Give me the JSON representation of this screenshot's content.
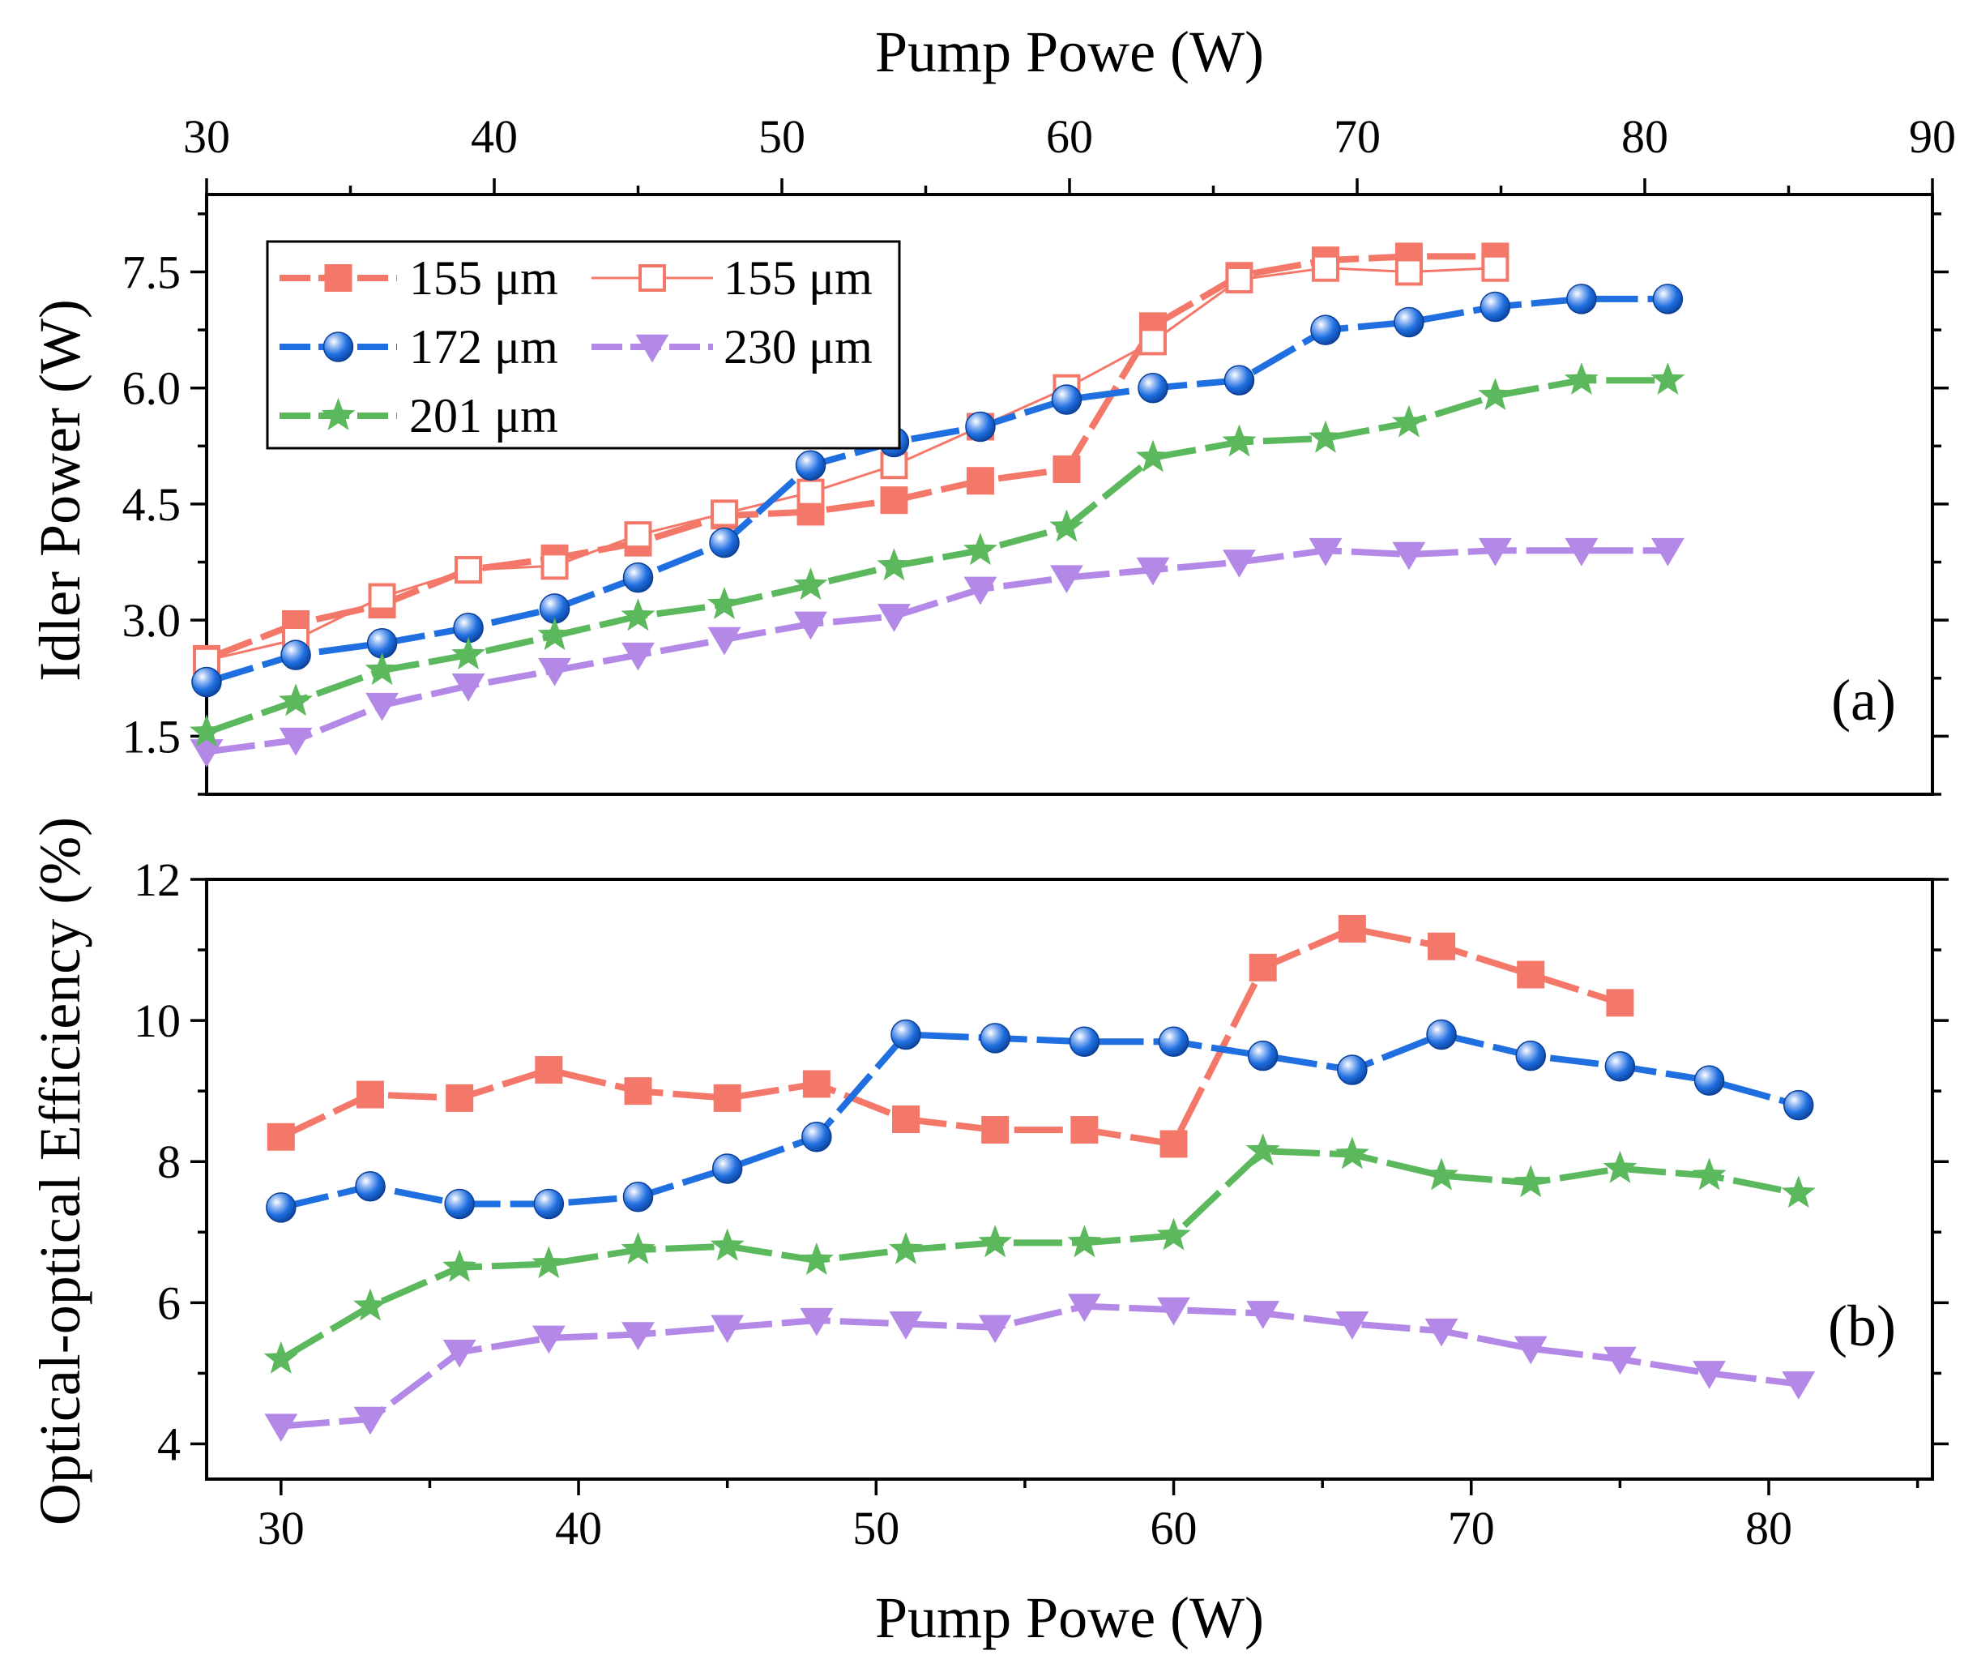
{
  "chart_data": [
    {
      "id": "a",
      "type": "line",
      "panel_label": "(a)",
      "title": "",
      "xlabel": "Pump Powe (W)",
      "ylabel": "Idler Power (W)",
      "xlim": [
        30,
        90
      ],
      "xticks": [
        30,
        40,
        50,
        60,
        70,
        80,
        90
      ],
      "ylim": [
        0.75,
        8.5
      ],
      "yticks": [
        1.5,
        3.0,
        4.5,
        6.0,
        7.5
      ],
      "ytick_labels": [
        "1.5",
        "3.0",
        "4.5",
        "6.0",
        "7.5"
      ],
      "legend": "top-left",
      "series": [
        {
          "name": "155 μm",
          "marker": "square",
          "color": "#F4786A",
          "dashed": true,
          "x": [
            30,
            33.1,
            36.1,
            39.1,
            42.1,
            45.0,
            48.0,
            51.0,
            53.9,
            56.9,
            59.9,
            62.9,
            65.9,
            68.9,
            71.8,
            74.8
          ],
          "y": [
            2.5,
            2.95,
            3.2,
            3.65,
            3.8,
            4.0,
            4.35,
            4.4,
            4.55,
            4.8,
            4.95,
            6.8,
            7.45,
            7.65,
            7.7,
            7.7
          ]
        },
        {
          "name": "155 μm",
          "marker": "square-open",
          "color": "#F4786A",
          "dashed": false,
          "x": [
            30,
            33.1,
            36.1,
            39.1,
            42.1,
            45.0,
            48.0,
            51.0,
            53.9,
            56.9,
            59.9,
            62.9,
            65.9,
            68.9,
            71.8,
            74.8
          ],
          "y": [
            2.48,
            2.75,
            3.3,
            3.65,
            3.7,
            4.1,
            4.38,
            4.65,
            5.0,
            5.5,
            6.0,
            6.6,
            7.4,
            7.55,
            7.5,
            7.55
          ]
        },
        {
          "name": "172 μm",
          "marker": "sphere",
          "color": "#1F6FE0",
          "dashed": true,
          "x": [
            30,
            33.1,
            36.1,
            39.1,
            42.1,
            45.0,
            48.0,
            51.0,
            53.9,
            56.9,
            59.9,
            62.9,
            65.9,
            68.9,
            71.8,
            74.8,
            77.8,
            80.8
          ],
          "y": [
            2.2,
            2.55,
            2.7,
            2.9,
            3.15,
            3.55,
            4.0,
            5.0,
            5.3,
            5.5,
            5.85,
            6.0,
            6.1,
            6.75,
            6.85,
            7.05,
            7.15,
            7.15
          ]
        },
        {
          "name": "230 μm",
          "marker": "triangle-down",
          "color": "#B388E6",
          "dashed": true,
          "x": [
            30,
            33.1,
            36.1,
            39.1,
            42.1,
            45.0,
            48.0,
            51.0,
            53.9,
            56.9,
            59.9,
            62.9,
            65.9,
            68.9,
            71.8,
            74.8,
            77.8,
            80.8
          ],
          "y": [
            1.3,
            1.45,
            1.9,
            2.15,
            2.35,
            2.55,
            2.75,
            2.95,
            3.05,
            3.4,
            3.55,
            3.65,
            3.75,
            3.9,
            3.85,
            3.9,
            3.9,
            3.9
          ]
        },
        {
          "name": "201 μm",
          "marker": "star",
          "color": "#5CB85C",
          "dashed": true,
          "x": [
            30,
            33.1,
            36.1,
            39.1,
            42.1,
            45.0,
            48.0,
            51.0,
            53.9,
            56.9,
            59.9,
            62.9,
            65.9,
            68.9,
            71.8,
            74.8,
            77.8,
            80.8
          ],
          "y": [
            1.55,
            1.95,
            2.35,
            2.55,
            2.8,
            3.05,
            3.2,
            3.45,
            3.7,
            3.9,
            4.2,
            5.1,
            5.3,
            5.35,
            5.55,
            5.9,
            6.1,
            6.1
          ]
        }
      ]
    },
    {
      "id": "b",
      "type": "line",
      "panel_label": "(b)",
      "title": "",
      "xlabel": "Pump Powe (W)",
      "ylabel": "Optical-optical Efficiency (%)",
      "xlim": [
        27.5,
        85.5
      ],
      "xticks": [
        30,
        40,
        50,
        60,
        70,
        80
      ],
      "ylim": [
        3.5,
        12
      ],
      "yticks": [
        4,
        6,
        8,
        10,
        12
      ],
      "ytick_labels": [
        "4",
        "6",
        "8",
        "10",
        "12"
      ],
      "series": [
        {
          "name": "155 μm",
          "marker": "square",
          "color": "#F4786A",
          "dashed": true,
          "x": [
            30,
            33,
            36,
            39,
            42,
            45,
            48,
            51,
            54,
            57,
            60,
            63,
            66,
            69,
            72,
            75
          ],
          "y": [
            8.35,
            8.95,
            8.9,
            9.3,
            9.0,
            8.9,
            9.1,
            8.6,
            8.45,
            8.45,
            8.25,
            10.75,
            11.3,
            11.05,
            10.65,
            10.25
          ]
        },
        {
          "name": "172 μm",
          "marker": "sphere",
          "color": "#1F6FE0",
          "dashed": true,
          "x": [
            30,
            33,
            36,
            39,
            42,
            45,
            48,
            51,
            54,
            57,
            60,
            63,
            66,
            69,
            72,
            75,
            78,
            81
          ],
          "y": [
            7.35,
            7.65,
            7.4,
            7.4,
            7.5,
            7.9,
            8.35,
            9.8,
            9.75,
            9.7,
            9.7,
            9.5,
            9.3,
            9.8,
            9.5,
            9.35,
            9.15,
            8.8
          ]
        },
        {
          "name": "201 μm",
          "marker": "star",
          "color": "#5CB85C",
          "dashed": true,
          "x": [
            30,
            33,
            36,
            39,
            42,
            45,
            48,
            51,
            54,
            57,
            60,
            63,
            66,
            69,
            72,
            75,
            78,
            81
          ],
          "y": [
            5.2,
            5.95,
            6.5,
            6.55,
            6.75,
            6.8,
            6.6,
            6.75,
            6.85,
            6.85,
            6.95,
            8.15,
            8.1,
            7.8,
            7.7,
            7.9,
            7.8,
            7.55
          ]
        },
        {
          "name": "230 μm",
          "marker": "triangle-down",
          "color": "#B388E6",
          "dashed": true,
          "x": [
            30,
            33,
            36,
            39,
            42,
            45,
            48,
            51,
            54,
            57,
            60,
            63,
            66,
            69,
            72,
            75,
            78,
            81
          ],
          "y": [
            4.25,
            4.35,
            5.3,
            5.5,
            5.55,
            5.65,
            5.75,
            5.7,
            5.65,
            5.95,
            5.9,
            5.85,
            5.7,
            5.6,
            5.35,
            5.2,
            5.0,
            4.85
          ]
        }
      ]
    }
  ]
}
